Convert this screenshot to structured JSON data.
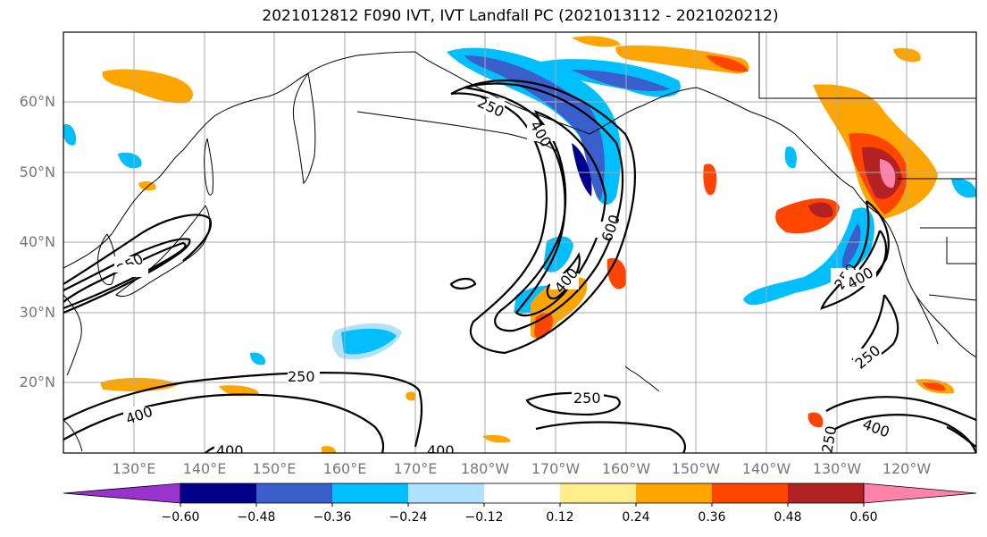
{
  "title": "2021012812 F090 IVT, IVT Landfall PC (2021013112 - 2021020212)",
  "lat_labels": [
    "60°N",
    "50°N",
    "40°N",
    "30°N",
    "20°N"
  ],
  "lon_labels": [
    "130°E",
    "140°E",
    "150°E",
    "160°E",
    "170°E",
    "180°W",
    "170°W",
    "160°W",
    "150°W",
    "140°W",
    "130°W",
    "120°W"
  ],
  "contour_labels": [
    "250",
    "400",
    "600",
    "250",
    "400",
    "250",
    "250",
    "400",
    "250",
    "400",
    "250",
    "400",
    "400",
    "250",
    "400",
    "250",
    "400"
  ],
  "colorbar": {
    "tick_labels": [
      "−0.60",
      "−0.48",
      "−0.36",
      "−0.24",
      "−0.12",
      "0.12",
      "0.24",
      "0.36",
      "0.48",
      "0.60"
    ],
    "colors": [
      "#9a32cd",
      "#00008b",
      "#3a5fcd",
      "#00bfff",
      "#b0e2ff",
      "#ffffff",
      "#ffec8b",
      "#ffa500",
      "#ff4500",
      "#b22222",
      "#ff82ab",
      "#ff82ab"
    ]
  },
  "map_data": {
    "extent_lon": [
      120,
      250
    ],
    "extent_lat": [
      10,
      70
    ],
    "contour_levels": [
      250,
      400,
      600
    ]
  }
}
